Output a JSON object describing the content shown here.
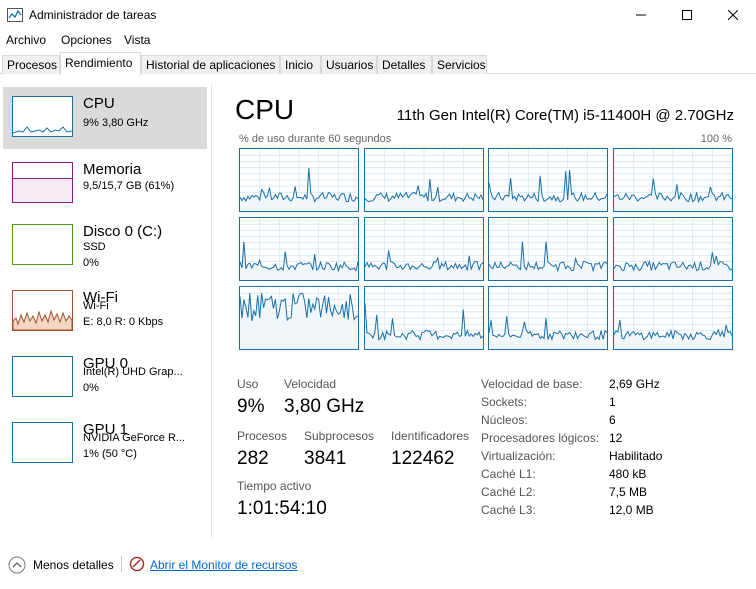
{
  "window": {
    "title": "Administrador de tareas",
    "icon": "task-manager-icon",
    "controls": [
      "minimize-icon",
      "maximize-icon",
      "close-icon"
    ]
  },
  "menu": {
    "file": "Archivo",
    "options": "Opciones",
    "view": "Vista"
  },
  "tabs": [
    {
      "label": "Procesos"
    },
    {
      "label": "Rendimiento",
      "active": true
    },
    {
      "label": "Historial de aplicaciones"
    },
    {
      "label": "Inicio"
    },
    {
      "label": "Usuarios"
    },
    {
      "label": "Detalles"
    },
    {
      "label": "Servicios"
    }
  ],
  "sidebar": {
    "items": [
      {
        "title": "CPU",
        "line1": "9% 3,80 GHz",
        "line2": "",
        "color": "#1a6fa8"
      },
      {
        "title": "Memoria",
        "line1": "9,5/15,7 GB (61%)",
        "line2": "",
        "color": "#8b1a8b"
      },
      {
        "title": "Disco 0 (C:)",
        "line1": "SSD",
        "line2": "0%",
        "color": "#4d9a1a"
      },
      {
        "title": "Wi-Fi",
        "line1": "Wi-Fi",
        "line2": "E: 8,0 R: 0 Kbps",
        "color": "#a0522d"
      },
      {
        "title": "GPU 0",
        "line1": "Intel(R) UHD Grap...",
        "line2": "0%",
        "color": "#1a6fa8"
      },
      {
        "title": "GPU 1",
        "line1": "NVIDIA GeForce R...",
        "line2": "1% (50 °C)",
        "color": "#1a6fa8"
      }
    ]
  },
  "main": {
    "title": "CPU",
    "model": "11th Gen Intel(R) Core(TM) i5-11400H @ 2.70GHz",
    "utilization_label": "% de uso durante 60 segundos",
    "utilization_max": "100 %",
    "graph_color": "#1a6fa8",
    "stats": {
      "usage_label": "Uso",
      "usage_value": "9%",
      "speed_label": "Velocidad",
      "speed_value": "3,80 GHz",
      "processes_label": "Procesos",
      "processes_value": "282",
      "threads_label": "Subprocesos",
      "threads_value": "3841",
      "handles_label": "Identificadores",
      "handles_value": "122462",
      "uptime_label": "Tiempo activo",
      "uptime_value": "1:01:54:10"
    },
    "specs": [
      {
        "label": "Velocidad de base:",
        "value": "2,69 GHz"
      },
      {
        "label": "Sockets:",
        "value": "1"
      },
      {
        "label": "Núcleos:",
        "value": "6"
      },
      {
        "label": "Procesadores lógicos:",
        "value": "12"
      },
      {
        "label": "Virtualización:",
        "value": "Habilitado"
      },
      {
        "label": "Caché L1:",
        "value": "480 kB"
      },
      {
        "label": "Caché L2:",
        "value": "7,5 MB"
      },
      {
        "label": "Caché L3:",
        "value": "12,0 MB"
      }
    ]
  },
  "footer": {
    "less_details": "Menos detalles",
    "open_monitor": "Abrir el Monitor de recursos"
  }
}
